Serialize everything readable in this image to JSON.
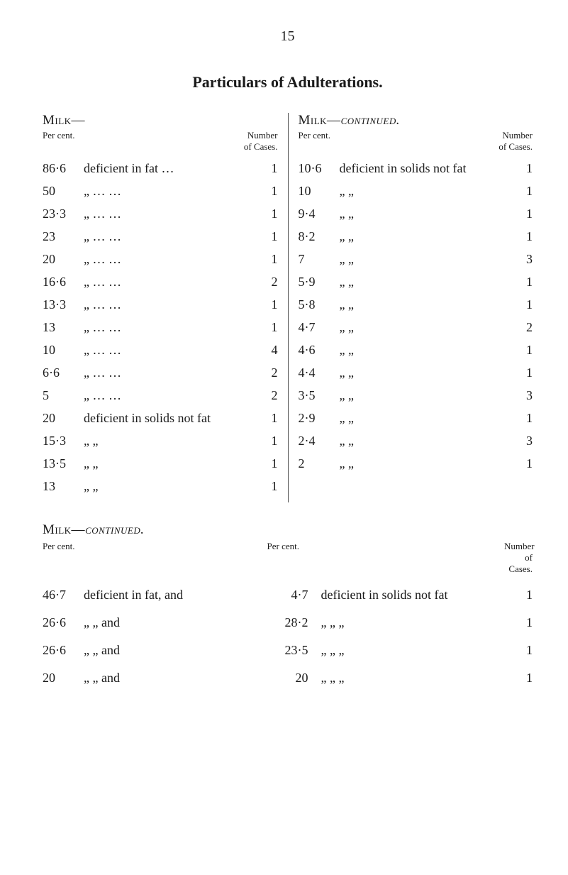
{
  "pageNumber": "15",
  "mainHeading": "Particulars of Adulterations.",
  "leftTop": {
    "sectionLabel": "Milk—",
    "percentLabel": "Per cent.",
    "numberLabel": "Number\nof Cases.",
    "rows": [
      {
        "pc": "86·6",
        "desc": "deficient in fat   …",
        "num": "1"
      },
      {
        "pc": "50",
        "desc": "„       …      …",
        "num": "1"
      },
      {
        "pc": "23·3",
        "desc": "„       …      …",
        "num": "1"
      },
      {
        "pc": "23",
        "desc": "„       …      …",
        "num": "1"
      },
      {
        "pc": "20",
        "desc": "„       …      …",
        "num": "1"
      },
      {
        "pc": "16·6",
        "desc": "„       …      …",
        "num": "2"
      },
      {
        "pc": "13·3",
        "desc": "„       …      …",
        "num": "1"
      },
      {
        "pc": "13",
        "desc": "„       …      …",
        "num": "1"
      },
      {
        "pc": "10",
        "desc": "„       …      …",
        "num": "4"
      },
      {
        "pc": "6·6",
        "desc": "„       …      …",
        "num": "2"
      },
      {
        "pc": "5",
        "desc": "„       …      …",
        "num": "2"
      },
      {
        "pc": "20",
        "desc": "deficient in solids not fat",
        "num": "1"
      },
      {
        "pc": "15·3",
        "desc": "„           „",
        "num": "1"
      },
      {
        "pc": "13·5",
        "desc": "„           „",
        "num": "1"
      },
      {
        "pc": "13",
        "desc": "„           „",
        "num": "1"
      }
    ]
  },
  "rightTop": {
    "sectionLabelPrefix": "Milk—",
    "sectionLabelSuffix": "continued.",
    "percentLabel": "Per cent.",
    "numberLabel": "Number\nof Cases.",
    "rows": [
      {
        "pc": "10·6",
        "desc": "deficient in solids not fat",
        "num": "1"
      },
      {
        "pc": "10",
        "desc": "„           „",
        "num": "1"
      },
      {
        "pc": "9·4",
        "desc": "„           „",
        "num": "1"
      },
      {
        "pc": "8·2",
        "desc": "„           „",
        "num": "1"
      },
      {
        "pc": "7",
        "desc": "„           „",
        "num": "3"
      },
      {
        "pc": "5·9",
        "desc": "„           „",
        "num": "1"
      },
      {
        "pc": "5·8",
        "desc": "„           „",
        "num": "1"
      },
      {
        "pc": "4·7",
        "desc": "„           „",
        "num": "2"
      },
      {
        "pc": "4·6",
        "desc": "„           „",
        "num": "1"
      },
      {
        "pc": "4·4",
        "desc": "„           „",
        "num": "1"
      },
      {
        "pc": "3·5",
        "desc": "„           „",
        "num": "3"
      },
      {
        "pc": "2·9",
        "desc": "„           „",
        "num": "1"
      },
      {
        "pc": "2·4",
        "desc": "„           „",
        "num": "3"
      },
      {
        "pc": "2",
        "desc": "„           „",
        "num": "1"
      }
    ]
  },
  "bottom": {
    "sectionLabelPrefix": "Milk—",
    "sectionLabelSuffix": "continued.",
    "leftPercentLabel": "Per cent.",
    "rightPercentLabel": "Per cent.",
    "numberLabel": "Number\nof Cases.",
    "rows": [
      {
        "pc1": "46·7",
        "desc1": "deficient in fat, and",
        "pc2": "4·7",
        "desc2": "deficient in solids not fat",
        "num": "1"
      },
      {
        "pc1": "26·6",
        "desc1": "„      „     and",
        "pc2": "28·2",
        "desc2": "„        „        „",
        "num": "1"
      },
      {
        "pc1": "26·6",
        "desc1": "„      „     and",
        "pc2": "23·5",
        "desc2": "„        „        „",
        "num": "1"
      },
      {
        "pc1": "20",
        "desc1": "„      „     and",
        "pc2": "20",
        "desc2": "„        „        „",
        "num": "1"
      }
    ]
  }
}
